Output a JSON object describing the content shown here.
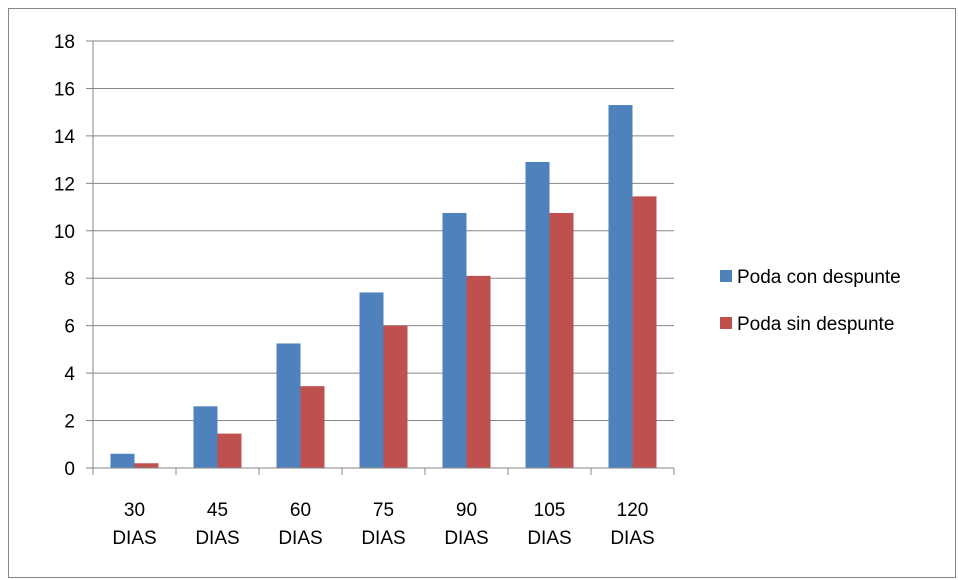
{
  "chart_data": {
    "type": "bar",
    "title": "",
    "xlabel": "",
    "ylabel": "",
    "categories": [
      [
        "30",
        "DIAS"
      ],
      [
        "45",
        "DIAS"
      ],
      [
        "60",
        "DIAS"
      ],
      [
        "75",
        "DIAS"
      ],
      [
        "90",
        "DIAS"
      ],
      [
        "105",
        "DIAS"
      ],
      [
        "120",
        "DIAS"
      ]
    ],
    "series": [
      {
        "name": "Poda con despunte",
        "color": "#4F81BD",
        "values": [
          0.6,
          2.6,
          5.25,
          7.4,
          10.75,
          12.9,
          15.3
        ]
      },
      {
        "name": "Poda sin despunte",
        "color": "#C0504D",
        "values": [
          0.2,
          1.45,
          3.45,
          6.0,
          8.1,
          10.75,
          11.45
        ]
      }
    ],
    "ylim": [
      0,
      18
    ],
    "yticks": [
      "0",
      "2",
      "4",
      "6",
      "8",
      "10",
      "12",
      "14",
      "16",
      "18"
    ],
    "grid": true,
    "legend": "right"
  }
}
